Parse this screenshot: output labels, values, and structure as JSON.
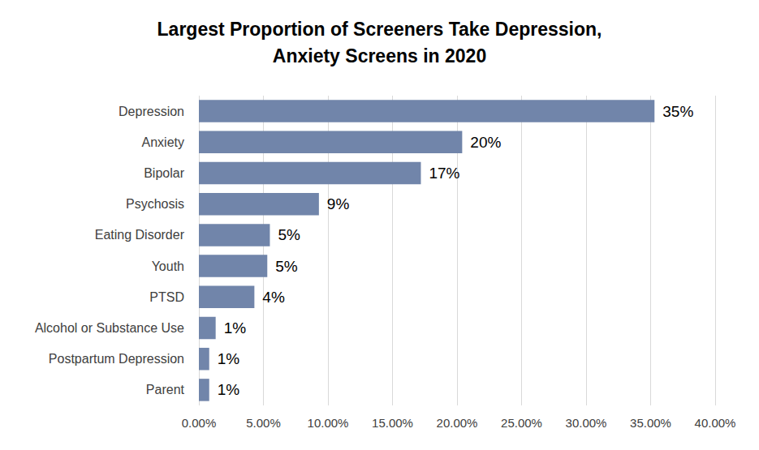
{
  "chart_data": {
    "type": "bar",
    "title": "Largest Proportion of Screeners Take Depression,\nAnxiety Screens in 2020",
    "orientation": "horizontal",
    "categories": [
      "Depression",
      "Anxiety",
      "Bipolar",
      "Psychosis",
      "Eating Disorder",
      "Youth",
      "PTSD",
      "Alcohol or Substance Use",
      "Postpartum Depression",
      "Parent"
    ],
    "values": [
      35.3,
      20.4,
      17.2,
      9.3,
      5.5,
      5.3,
      4.3,
      1.3,
      0.8,
      0.8
    ],
    "value_labels": [
      "35%",
      "20%",
      "17%",
      "9%",
      "5%",
      "5%",
      "4%",
      "1%",
      "1%",
      "1%"
    ],
    "color": "#7185aa",
    "data_labels": true,
    "xlim": [
      0,
      40
    ],
    "xticks": [
      {
        "value": 0,
        "label": "0.00%"
      },
      {
        "value": 5,
        "label": "5.00%"
      },
      {
        "value": 10,
        "label": "10.00%"
      },
      {
        "value": 15,
        "label": "15.00%"
      },
      {
        "value": 20,
        "label": "20.00%"
      },
      {
        "value": 25,
        "label": "25.00%"
      },
      {
        "value": 30,
        "label": "30.00%"
      },
      {
        "value": 35,
        "label": "35.00%"
      },
      {
        "value": 40,
        "label": "40.00%"
      }
    ],
    "grid": true
  }
}
